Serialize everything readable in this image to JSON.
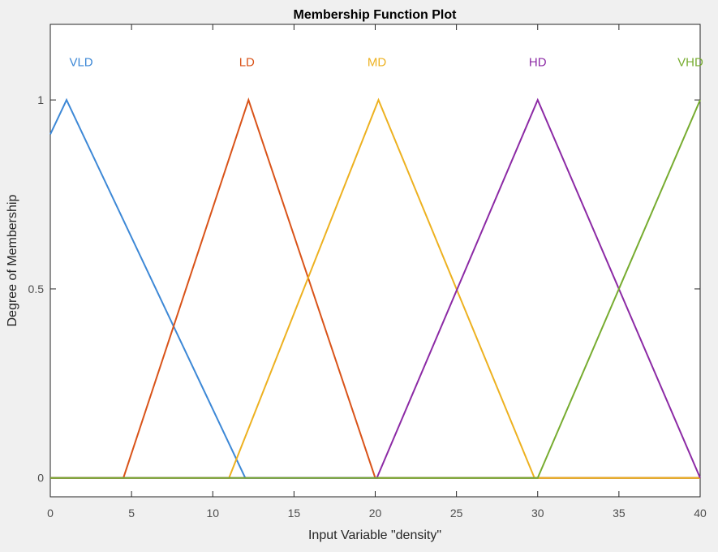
{
  "chart_data": {
    "type": "line",
    "title": "Membership Function Plot",
    "xlabel": "Input Variable \"density\"",
    "ylabel": "Degree of Membership",
    "xlim": [
      0,
      40
    ],
    "ylim": [
      -0.05,
      1.2
    ],
    "xticks": [
      0,
      5,
      10,
      15,
      20,
      25,
      30,
      35,
      40
    ],
    "xtick_labels": [
      "0",
      "5",
      "10",
      "15",
      "20",
      "25",
      "30",
      "35",
      "40"
    ],
    "yticks": [
      0,
      0.5,
      1
    ],
    "ytick_labels": [
      "0",
      "0.5",
      "1"
    ],
    "grid": false,
    "series": [
      {
        "name": "VLD",
        "color": "#3d88d6",
        "label_x": 1.9,
        "label_y": 1.1,
        "x": [
          0,
          1,
          12,
          40
        ],
        "y": [
          0.909,
          1,
          0,
          0
        ]
      },
      {
        "name": "LD",
        "color": "#d95319",
        "label_x": 12.1,
        "label_y": 1.1,
        "x": [
          0,
          4.5,
          12.2,
          20,
          40
        ],
        "y": [
          0,
          0,
          1,
          0,
          0
        ]
      },
      {
        "name": "MD",
        "color": "#edb120",
        "label_x": 20.1,
        "label_y": 1.1,
        "x": [
          0,
          11,
          20.2,
          29.8,
          40
        ],
        "y": [
          0,
          0,
          1,
          0,
          0
        ]
      },
      {
        "name": "HD",
        "color": "#8c2aa5",
        "label_x": 30,
        "label_y": 1.1,
        "x": [
          0,
          20.1,
          30,
          40
        ],
        "y": [
          0,
          0,
          1,
          0
        ]
      },
      {
        "name": "VHD",
        "color": "#77ac30",
        "label_x": 39.4,
        "label_y": 1.1,
        "x": [
          0,
          30,
          40
        ],
        "y": [
          0,
          0,
          1
        ]
      }
    ]
  },
  "colors": {
    "figure_bg": "#f0f0f0",
    "axes_bg": "#ffffff",
    "axes_line": "#262626",
    "tick_label": "#4d4d4d"
  }
}
